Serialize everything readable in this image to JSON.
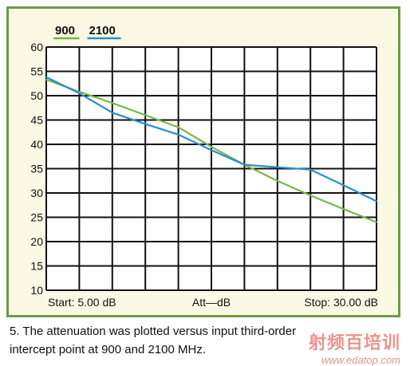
{
  "chart_data": {
    "type": "line",
    "title": "",
    "xlabel": "Att—dB",
    "xstart_label": "Start: 5.00 dB",
    "xstop_label": "Stop: 30.00 dB",
    "ylabel": "",
    "ylim": [
      10,
      60
    ],
    "yticks": [
      10,
      15,
      20,
      25,
      30,
      35,
      40,
      45,
      50,
      55,
      60
    ],
    "xlim": [
      5,
      30
    ],
    "xgrid_count": 10,
    "grid": true,
    "legend_placement": "top-left",
    "series": [
      {
        "name": "900",
        "color": "#7ab648",
        "x": [
          5,
          7.5,
          10,
          12.5,
          15,
          17.5,
          20,
          22.5,
          25,
          27.5,
          30
        ],
        "values": [
          53.3,
          50.8,
          48.5,
          46.0,
          43.5,
          39.5,
          35.8,
          32.5,
          29.5,
          26.7,
          24.0
        ]
      },
      {
        "name": "2100",
        "color": "#2a8cd0",
        "x": [
          5,
          7.5,
          10,
          12.5,
          15,
          17.5,
          20,
          22.5,
          25,
          27.5,
          30
        ],
        "values": [
          53.8,
          50.5,
          46.5,
          44.2,
          42.0,
          38.8,
          35.8,
          35.3,
          34.8,
          31.6,
          28.3
        ]
      }
    ]
  },
  "caption": {
    "line1": "5. The attenuation was plotted versus input third-order",
    "line2": "intercept point at 900 and 2100 MHz."
  },
  "watermark": {
    "brand": "射频百培训",
    "url": "www.edatop.com"
  }
}
